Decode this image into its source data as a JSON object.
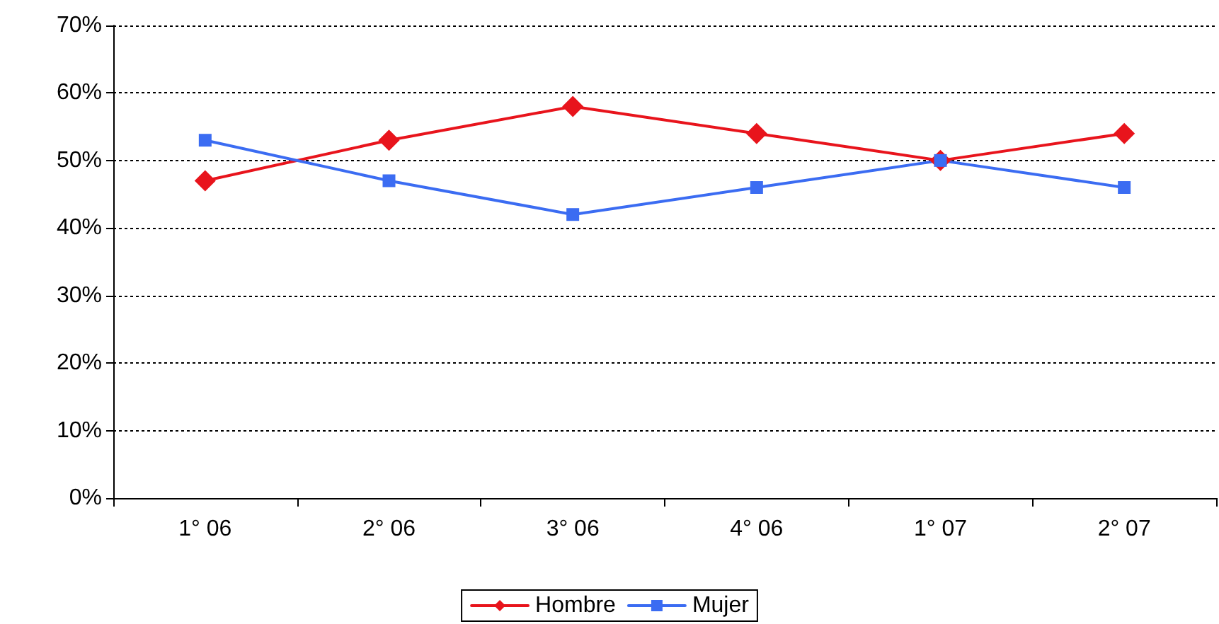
{
  "chart_data": {
    "type": "line",
    "categories": [
      "1° 06",
      "2° 06",
      "3° 06",
      "4° 06",
      "1° 07",
      "2° 07"
    ],
    "series": [
      {
        "name": "Hombre",
        "color": "#e8141c",
        "marker": "diamond",
        "values": [
          47,
          53,
          58,
          54,
          50,
          54
        ]
      },
      {
        "name": "Mujer",
        "color": "#3b6cf2",
        "marker": "square",
        "values": [
          53,
          47,
          42,
          46,
          50,
          46
        ]
      }
    ],
    "ylim": [
      0,
      70
    ],
    "yticks": [
      {
        "value": 0,
        "label": "0%"
      },
      {
        "value": 10,
        "label": "10%"
      },
      {
        "value": 20,
        "label": "20%"
      },
      {
        "value": 30,
        "label": "30%"
      },
      {
        "value": 40,
        "label": "40%"
      },
      {
        "value": 50,
        "label": "50%"
      },
      {
        "value": 60,
        "label": "60%"
      },
      {
        "value": 70,
        "label": "70%"
      }
    ],
    "grid": "y",
    "legend": "bottom",
    "line_style": "solid"
  }
}
